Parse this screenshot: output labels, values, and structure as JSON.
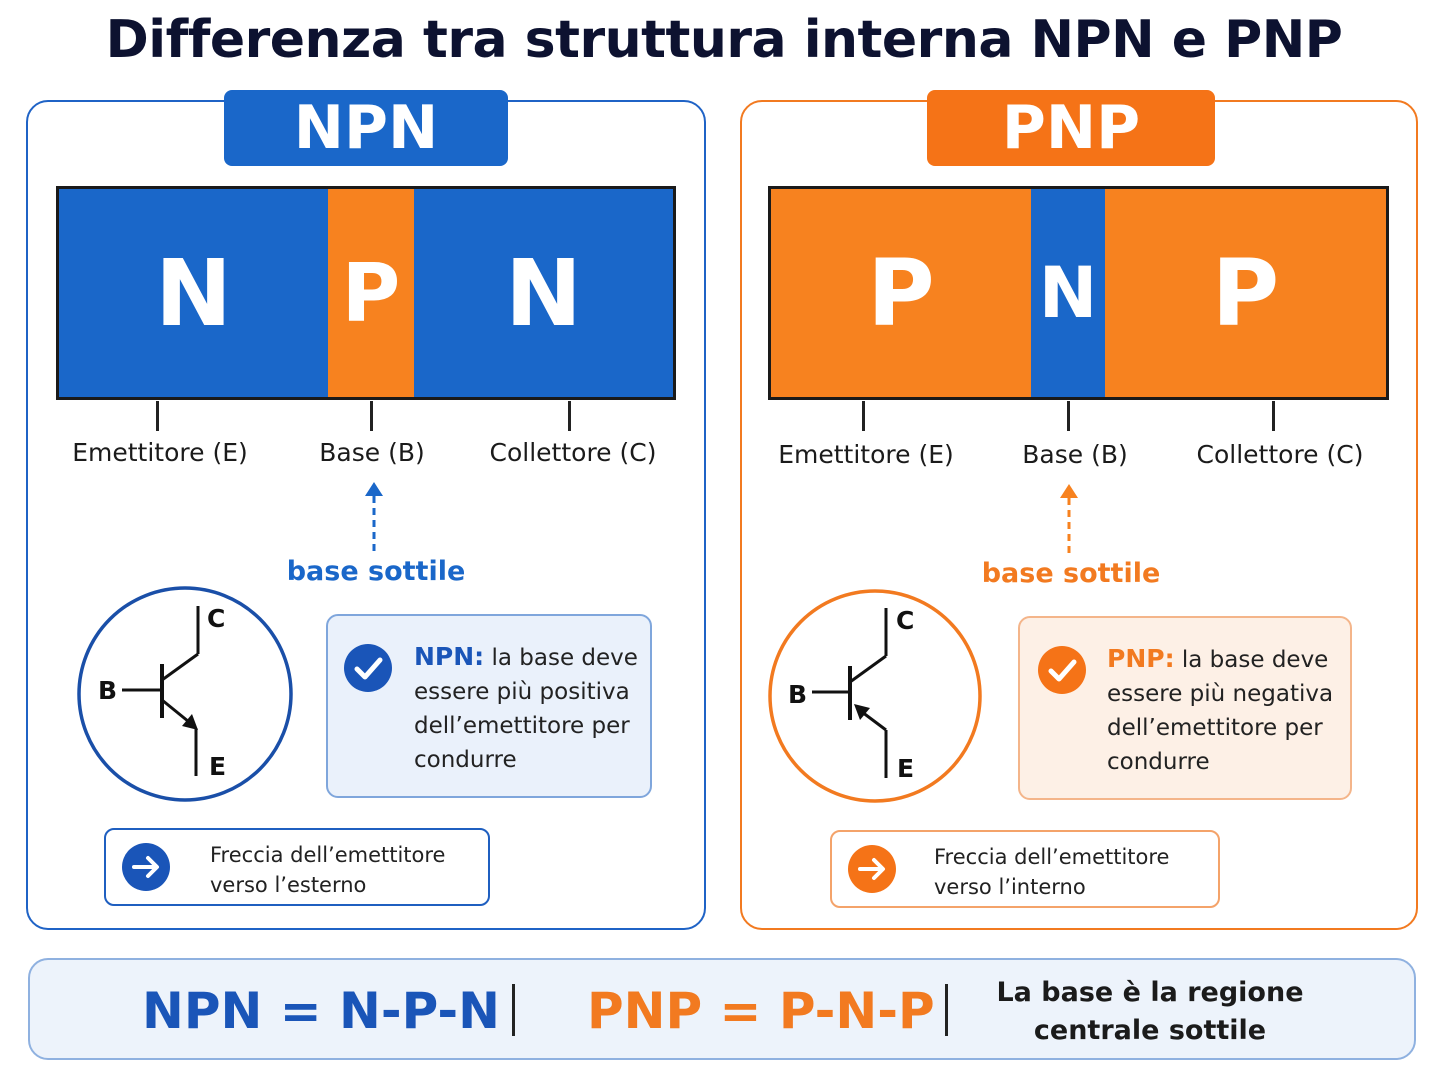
{
  "title": "Differenza tra struttura interna NPN e PNP",
  "npn": {
    "badge": "NPN",
    "regions": [
      "N",
      "P",
      "N"
    ],
    "terminals": [
      "Emettitore (E)",
      "Base (B)",
      "Collettore (C)"
    ],
    "thin_base_label": "base sottile",
    "symbol_labels": {
      "c": "C",
      "b": "B",
      "e": "E"
    },
    "info_bold": "NPN:",
    "info_lines": [
      " la base deve",
      "essere più positiva",
      "dell’emettitore per",
      "condurre"
    ],
    "arrow_note_lines": [
      "Freccia dell’emettitore",
      "verso l’esterno"
    ]
  },
  "pnp": {
    "badge": "PNP",
    "regions": [
      "P",
      "N",
      "P"
    ],
    "terminals": [
      "Emettitore (E)",
      "Base (B)",
      "Collettore (C)"
    ],
    "thin_base_label": "base sottile",
    "symbol_labels": {
      "c": "C",
      "b": "B",
      "e": "E"
    },
    "info_bold": "PNP:",
    "info_lines": [
      " la base deve",
      "essere più negativa",
      "dell’emettitore per",
      "condurre"
    ],
    "arrow_note_lines": [
      "Freccia dell’emettitore",
      "verso l’interno"
    ]
  },
  "footer": {
    "npn_formula": "NPN = N-P-N",
    "pnp_formula": "PNP = P-N-P",
    "note_lines": [
      "La base è  la regione",
      "centrale sottile"
    ]
  },
  "colors": {
    "blue": "#1a67c9",
    "orange": "#f7821f",
    "dark_title": "#0d1230"
  },
  "icons": [
    "checkmark-icon",
    "arrow-right-icon"
  ]
}
